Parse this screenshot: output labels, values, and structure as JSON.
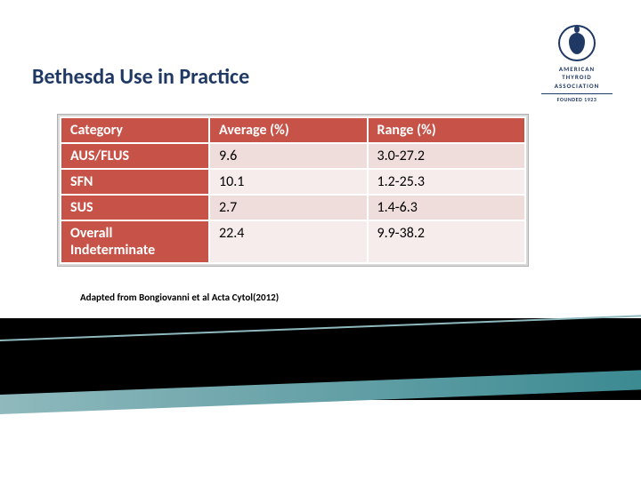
{
  "title": "Bethesda Use in Practice",
  "logo": {
    "line1": "AMERICAN",
    "line2": "THYROID",
    "line3": "ASSOCIATION",
    "line4": "FOUNDED 1923"
  },
  "table": {
    "columns": [
      "Category",
      "Average (%)",
      "Range (%)"
    ],
    "rows": [
      {
        "category": "AUS/FLUS",
        "average": "9.6",
        "range": "3.0-27.2",
        "shade": "a"
      },
      {
        "category": "SFN",
        "average": "10.1",
        "range": "1.2-25.3",
        "shade": "b"
      },
      {
        "category": "SUS",
        "average": "2.7",
        "range": "1.4-6.3",
        "shade": "a"
      },
      {
        "category": "Overall Indeterminate",
        "average": "22.4",
        "range": "9.9-38.2",
        "shade": "b"
      }
    ],
    "header_bg": "#c65248",
    "header_fg": "#ffffff",
    "row_shade_a": "#efdddb",
    "row_shade_b": "#f6eceb",
    "border_color": "#ffffff",
    "font_size": 16
  },
  "attribution": "Adapted from Bongiovanni et al Acta Cytol(2012)",
  "footer": {
    "block_color": "#000000",
    "accent_gradient_from": "#8fb9bd",
    "accent_gradient_to": "#3c8a92"
  }
}
